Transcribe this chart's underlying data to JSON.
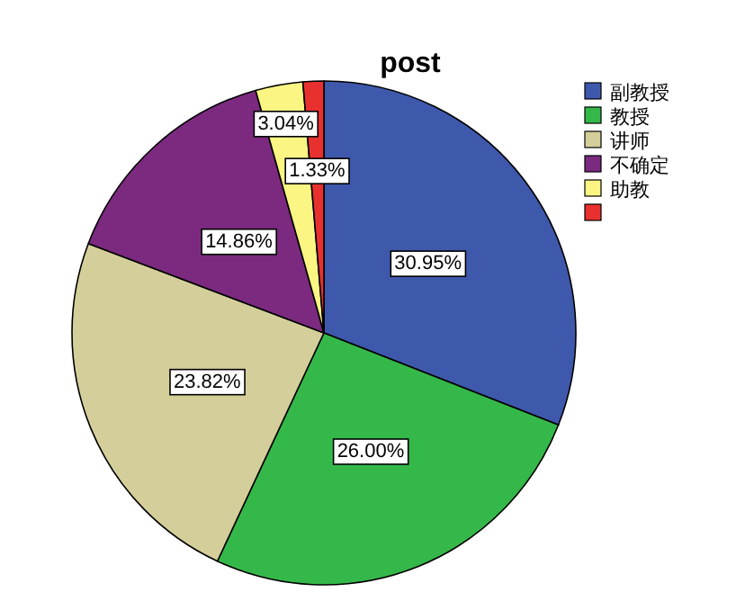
{
  "chart_data": {
    "type": "pie",
    "title": "post",
    "categories": [
      "副教授",
      "教授",
      "讲师",
      "不确定",
      "助教",
      null
    ],
    "values": [
      30.95,
      26.0,
      23.82,
      14.86,
      3.04,
      1.33
    ],
    "colors": [
      "#3e58ac",
      "#35b84a",
      "#d4cf9a",
      "#7b2a7f",
      "#fbf583",
      "#e8312f"
    ],
    "value_labels": [
      "30.95%",
      "26.00%",
      "23.82%",
      "14.86%",
      "3.04%",
      "1.33%"
    ],
    "legend": "top right"
  }
}
